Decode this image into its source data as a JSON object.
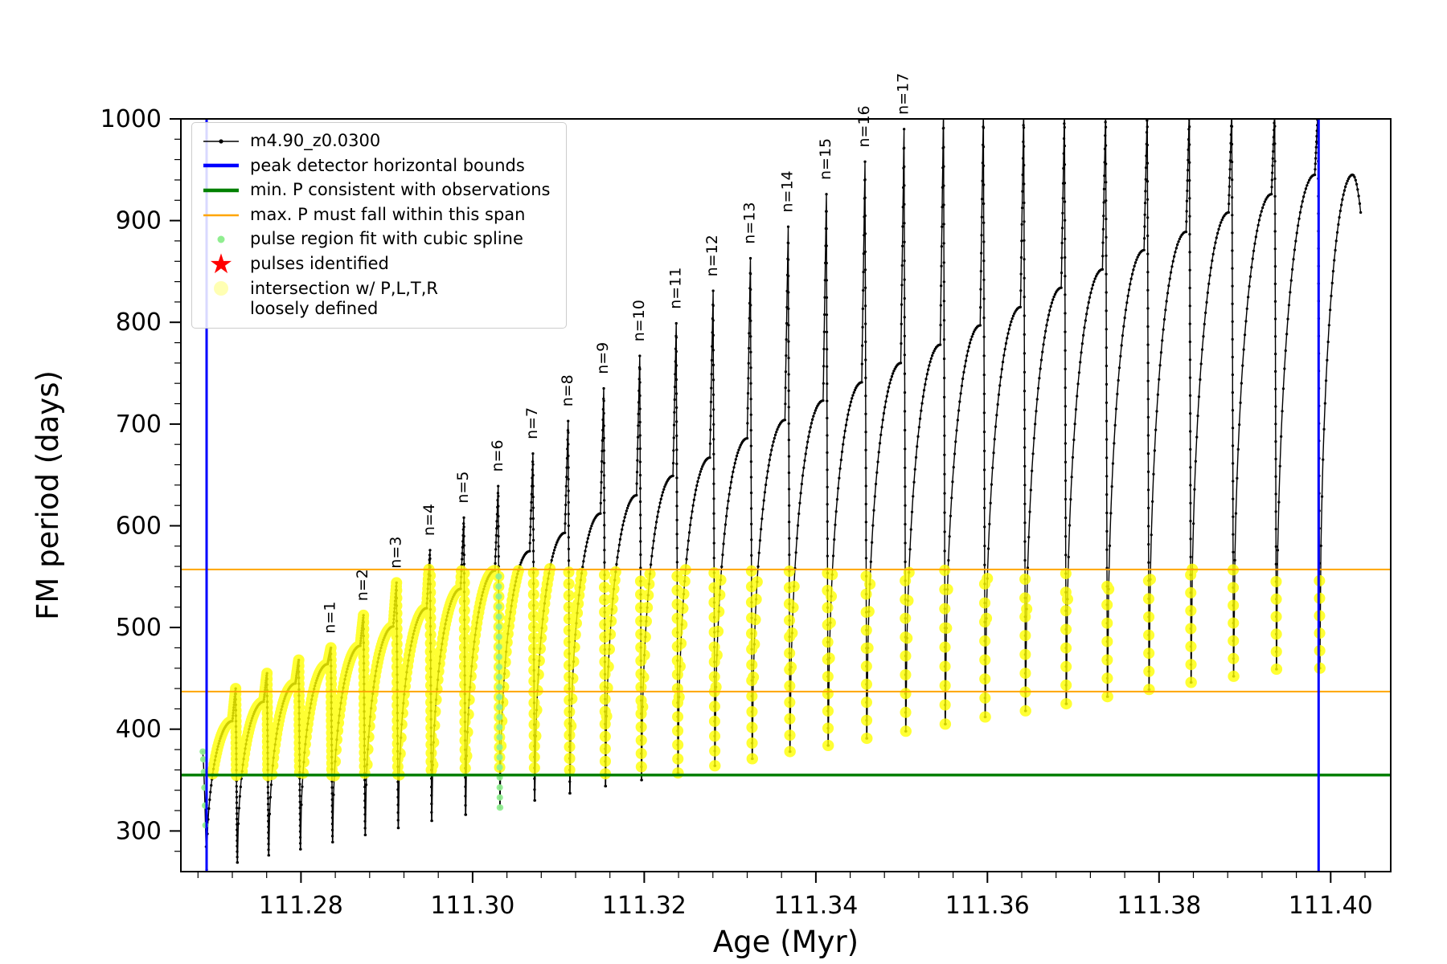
{
  "chart_data": {
    "type": "line",
    "title": "",
    "xlabel": "Age (Myr)",
    "ylabel": "FM period (days)",
    "xlim": [
      111.266,
      111.407
    ],
    "ylim": [
      260,
      1000
    ],
    "xticks": [
      {
        "v": 111.28,
        "label": "111.28"
      },
      {
        "v": 111.3,
        "label": "111.30"
      },
      {
        "v": 111.32,
        "label": "111.32"
      },
      {
        "v": 111.34,
        "label": "111.34"
      },
      {
        "v": 111.36,
        "label": "111.36"
      },
      {
        "v": 111.38,
        "label": "111.38"
      },
      {
        "v": 111.4,
        "label": "111.40"
      }
    ],
    "yticks": [
      {
        "v": 300,
        "label": "300"
      },
      {
        "v": 400,
        "label": "400"
      },
      {
        "v": 500,
        "label": "500"
      },
      {
        "v": 600,
        "label": "600"
      },
      {
        "v": 700,
        "label": "700"
      },
      {
        "v": 800,
        "label": "800"
      },
      {
        "v": 900,
        "label": "900"
      },
      {
        "v": 1000,
        "label": "1000"
      }
    ],
    "legend": [
      {
        "marker": "line-dot",
        "color": "#000000",
        "label": "m4.90_z0.0300"
      },
      {
        "marker": "thick-line",
        "color": "#0000ff",
        "label": "peak detector horizontal bounds"
      },
      {
        "marker": "thick-line",
        "color": "#008000",
        "label": "min. P consistent with observations"
      },
      {
        "marker": "line",
        "color": "#ffa500",
        "label": "max. P must fall within this span"
      },
      {
        "marker": "dot",
        "color": "#90ee90",
        "label": "pulse region fit with cubic spline"
      },
      {
        "marker": "star",
        "color": "#ff0000",
        "label": "pulses identified"
      },
      {
        "marker": "big-dot",
        "color": "#ffffb3",
        "label": "intersection w/ P,L,T,R\nloosely defined"
      }
    ],
    "colors": {
      "series": "#000000",
      "bounds_blue": "#0000ff",
      "min_green": "#008000",
      "span_orange": "#ffa500",
      "yellow": "#ffff00",
      "light_green": "#90ee90",
      "pale_yellow": "#ffffb3",
      "star_red": "#ff0000"
    },
    "hlines": [
      {
        "y": 355,
        "color": "#008000",
        "width": 3.5,
        "meaning": "min. P consistent with observations"
      },
      {
        "y": 437,
        "color": "#ffa500",
        "width": 2,
        "meaning": "max. P span lower bound"
      },
      {
        "y": 557,
        "color": "#ffa500",
        "width": 2,
        "meaning": "max. P span upper bound"
      }
    ],
    "vlines": [
      {
        "x": 111.269,
        "color": "#0000ff",
        "width": 3,
        "meaning": "peak detector left bound"
      },
      {
        "x": 111.3986,
        "color": "#0000ff",
        "width": 3,
        "meaning": "peak detector right bound"
      }
    ],
    "band": {
      "min": 353,
      "max": 558
    },
    "annotation_prefix": "n=",
    "lead_in": {
      "t0": 111.26855,
      "t1": 111.269,
      "start": 378,
      "end": 262
    },
    "pulses": [
      {
        "t0": 111.269,
        "t1": 111.2726,
        "min": 262,
        "peak": 408,
        "spike": 440,
        "n": null
      },
      {
        "t0": 111.2726,
        "t1": 111.27625,
        "min": 269,
        "peak": 427,
        "spike": 455,
        "n": null
      },
      {
        "t0": 111.27625,
        "t1": 111.27995,
        "min": 276,
        "peak": 445,
        "spike": 468,
        "n": null
      },
      {
        "t0": 111.27995,
        "t1": 111.2837,
        "min": 282,
        "peak": 464,
        "spike": 480,
        "n": 1
      },
      {
        "t0": 111.2837,
        "t1": 111.2875,
        "min": 289,
        "peak": 482,
        "spike": 512,
        "n": 2
      },
      {
        "t0": 111.2875,
        "t1": 111.29135,
        "min": 296,
        "peak": 501,
        "spike": 544,
        "n": 3
      },
      {
        "t0": 111.29135,
        "t1": 111.29525,
        "min": 303,
        "peak": 519,
        "spike": 576,
        "n": 4
      },
      {
        "t0": 111.29525,
        "t1": 111.2992,
        "min": 310,
        "peak": 538,
        "spike": 608,
        "n": 5
      },
      {
        "t0": 111.2992,
        "t1": 111.3032,
        "min": 316,
        "peak": 556,
        "spike": 639,
        "n": 6
      },
      {
        "t0": 111.3032,
        "t1": 111.30725,
        "min": 323,
        "peak": 575,
        "spike": 671,
        "n": 7
      },
      {
        "t0": 111.30725,
        "t1": 111.31135,
        "min": 330,
        "peak": 593,
        "spike": 703,
        "n": 8
      },
      {
        "t0": 111.31135,
        "t1": 111.3155,
        "min": 337,
        "peak": 612,
        "spike": 735,
        "n": 9
      },
      {
        "t0": 111.3155,
        "t1": 111.3197,
        "min": 344,
        "peak": 630,
        "spike": 767,
        "n": 10
      },
      {
        "t0": 111.3197,
        "t1": 111.32395,
        "min": 350,
        "peak": 649,
        "spike": 799,
        "n": 11
      },
      {
        "t0": 111.32395,
        "t1": 111.32825,
        "min": 357,
        "peak": 667,
        "spike": 831,
        "n": 12
      },
      {
        "t0": 111.32825,
        "t1": 111.3326,
        "min": 364,
        "peak": 686,
        "spike": 863,
        "n": 13
      },
      {
        "t0": 111.3326,
        "t1": 111.337,
        "min": 371,
        "peak": 704,
        "spike": 894,
        "n": 14
      },
      {
        "t0": 111.337,
        "t1": 111.34145,
        "min": 378,
        "peak": 723,
        "spike": 926,
        "n": 15
      },
      {
        "t0": 111.34145,
        "t1": 111.34595,
        "min": 384,
        "peak": 741,
        "spike": 958,
        "n": 16
      },
      {
        "t0": 111.34595,
        "t1": 111.3505,
        "min": 391,
        "peak": 760,
        "spike": 990,
        "n": 17
      },
      {
        "t0": 111.3505,
        "t1": 111.3551,
        "min": 398,
        "peak": 778,
        "spike": 1010,
        "n": null
      },
      {
        "t0": 111.3551,
        "t1": 111.35975,
        "min": 405,
        "peak": 797,
        "spike": 1010,
        "n": null
      },
      {
        "t0": 111.35975,
        "t1": 111.36445,
        "min": 412,
        "peak": 815,
        "spike": 1010,
        "n": null
      },
      {
        "t0": 111.36445,
        "t1": 111.3692,
        "min": 418,
        "peak": 834,
        "spike": 1010,
        "n": null
      },
      {
        "t0": 111.3692,
        "t1": 111.374,
        "min": 425,
        "peak": 852,
        "spike": 1010,
        "n": null
      },
      {
        "t0": 111.374,
        "t1": 111.37885,
        "min": 432,
        "peak": 871,
        "spike": 1010,
        "n": null
      },
      {
        "t0": 111.37885,
        "t1": 111.38375,
        "min": 439,
        "peak": 889,
        "spike": 1010,
        "n": null
      },
      {
        "t0": 111.38375,
        "t1": 111.3887,
        "min": 446,
        "peak": 908,
        "spike": 1010,
        "n": null
      },
      {
        "t0": 111.3887,
        "t1": 111.3937,
        "min": 452,
        "peak": 926,
        "spike": 1010,
        "n": null
      },
      {
        "t0": 111.3937,
        "t1": 111.39875,
        "min": 459,
        "peak": 945,
        "spike": 1010,
        "n": null
      }
    ],
    "final_arc": {
      "t0": 111.39875,
      "t1": 111.4035,
      "start": 460,
      "peak": 945,
      "end": 908
    },
    "spline_regions": [
      {
        "t_min": 111.3029,
        "t_max": 111.3032,
        "p_min": 300,
        "p_max": 556
      },
      {
        "t_min": 111.2685,
        "t_max": 111.26905,
        "p_min": 300,
        "p_max": 380
      }
    ]
  }
}
